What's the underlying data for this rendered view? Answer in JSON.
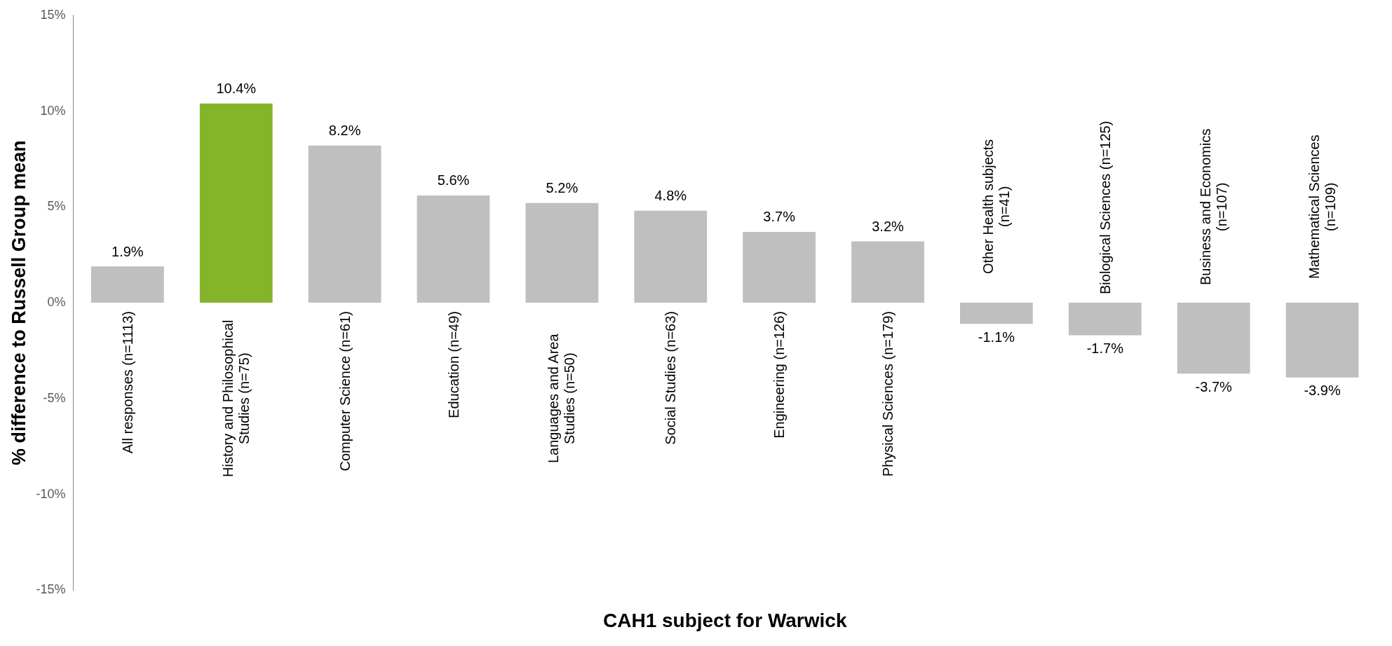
{
  "chart_data": {
    "type": "bar",
    "xlabel": "CAH1 subject for Warwick",
    "ylabel": "% difference to Russell Group mean",
    "categories": [
      "All responses (n=1113)",
      "History and Philosophical Studies (n=75)",
      "Computer Science (n=61)",
      "Education (n=49)",
      "Languages and Area Studies (n=50)",
      "Social Studies (n=63)",
      "Engineering (n=126)",
      "Physical Sciences (n=179)",
      "Other Health subjects (n=41)",
      "Biological Sciences (n=125)",
      "Business and Economics (n=107)",
      "Mathematical Sciences (n=109)"
    ],
    "values": [
      1.9,
      10.4,
      8.2,
      5.6,
      5.2,
      4.8,
      3.7,
      3.2,
      -1.1,
      -1.7,
      -3.7,
      -3.9
    ],
    "colors": [
      "#bfbfbf",
      "#84b42a",
      "#bfbfbf",
      "#bfbfbf",
      "#bfbfbf",
      "#bfbfbf",
      "#bfbfbf",
      "#bfbfbf",
      "#bfbfbf",
      "#bfbfbf",
      "#bfbfbf",
      "#bfbfbf"
    ],
    "value_labels": [
      "1.9%",
      "10.4%",
      "8.2%",
      "5.6%",
      "5.2%",
      "4.8%",
      "3.7%",
      "3.2%",
      "-1.1%",
      "-1.7%",
      "-3.7%",
      "-3.9%"
    ],
    "ylim": [
      -15,
      15
    ],
    "yticks": [
      {
        "value": -15,
        "label": "-15%"
      },
      {
        "value": -10,
        "label": "-10%"
      },
      {
        "value": -5,
        "label": "-5%"
      },
      {
        "value": 0,
        "label": "0%"
      },
      {
        "value": 5,
        "label": "5%"
      },
      {
        "value": 10,
        "label": "10%"
      },
      {
        "value": 15,
        "label": "15%"
      }
    ],
    "grid": false,
    "legend": false
  }
}
